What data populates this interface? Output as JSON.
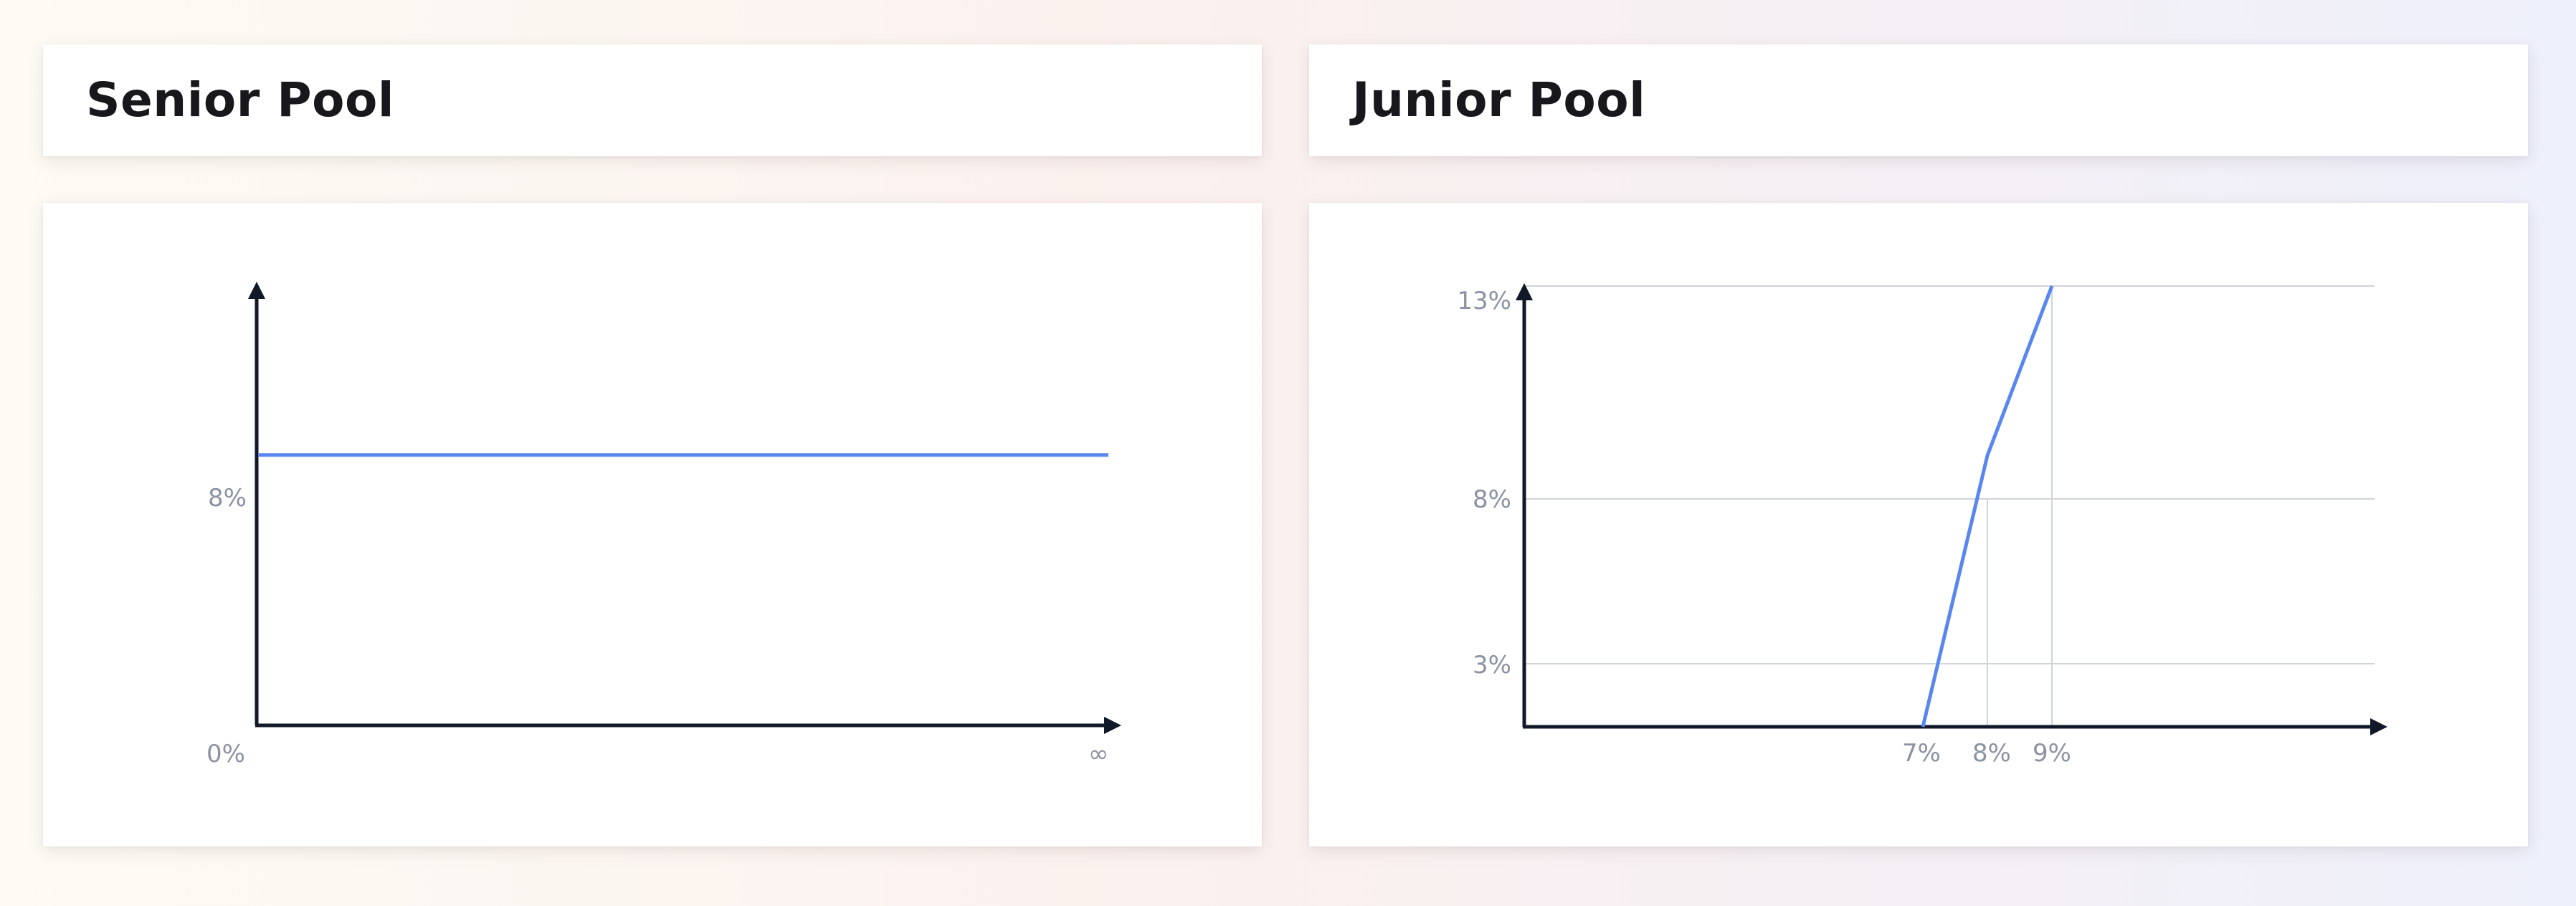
{
  "senior": {
    "title": "Senior Pool"
  },
  "junior": {
    "title": "Junior Pool"
  },
  "colors": {
    "line": "#5a86f0",
    "axis": "#111827",
    "grid": "#cfd3da",
    "tick_text": "#8b92a1",
    "card": "#ffffff"
  },
  "chart_data": [
    {
      "type": "line",
      "title": "Senior Pool",
      "xlabel": "",
      "ylabel": "",
      "x_ticks": [
        "0%",
        "∞"
      ],
      "y_ticks": [
        "8%"
      ],
      "ylim": [
        0,
        13
      ],
      "grid": false,
      "series": [
        {
          "x": [
            "0%",
            "∞"
          ],
          "values": [
            8,
            8
          ]
        }
      ]
    },
    {
      "type": "line",
      "title": "Junior Pool",
      "xlabel": "",
      "ylabel": "",
      "x_ticks": [
        "7%",
        "8%",
        "9%"
      ],
      "y_ticks": [
        "3%",
        "8%",
        "13%"
      ],
      "ylim": [
        0,
        13
      ],
      "grid": true,
      "series": [
        {
          "x": [
            7,
            8,
            9
          ],
          "values": [
            0,
            8,
            13
          ]
        }
      ]
    }
  ]
}
